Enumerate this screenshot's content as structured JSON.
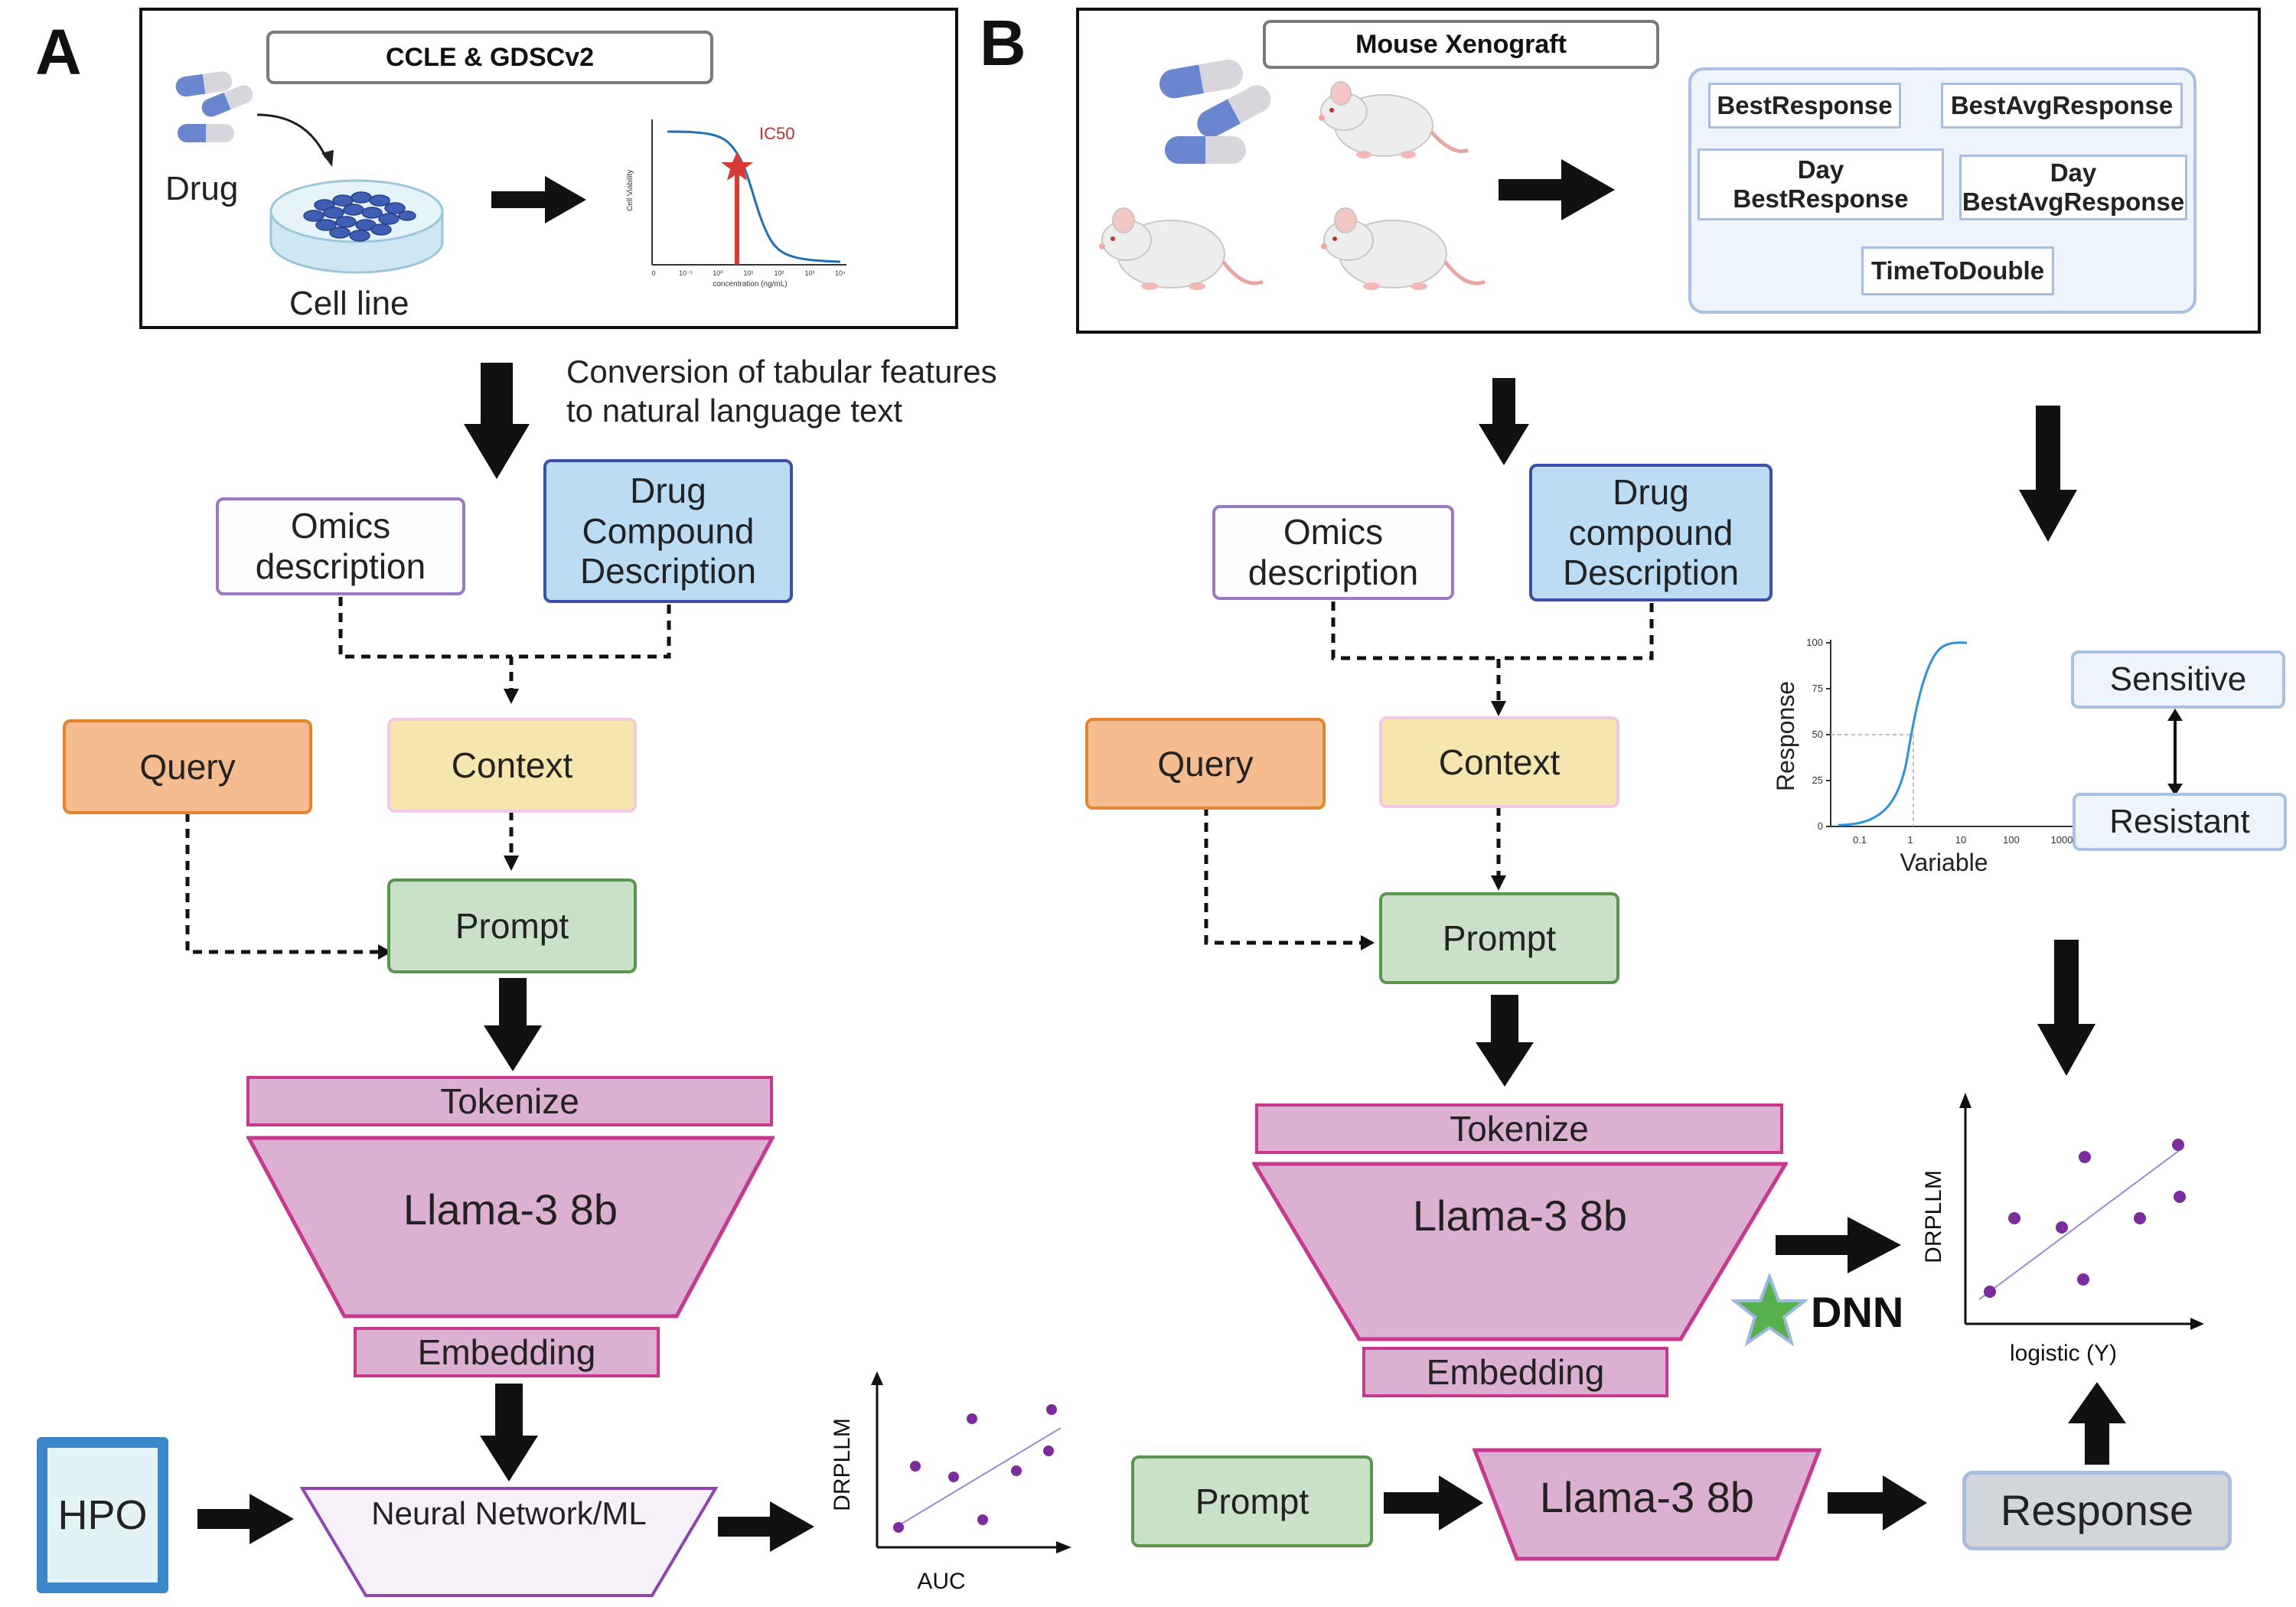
{
  "panel_a": {
    "letter": "A",
    "dataset_title": "CCLE & GDSCv2",
    "drug_label": "Drug",
    "cell_line_label": "Cell line",
    "ic50_label": "IC50",
    "curve_ylabel": "Cell Viability",
    "curve_xlabel": "concentration (ng/mL)",
    "curve_ticks": [
      "0",
      "10⁻¹",
      "10⁰",
      "10¹",
      "10²",
      "10³",
      "10⁴"
    ],
    "conversion_text": [
      "Conversion of tabular features",
      "to natural language text"
    ],
    "omics": [
      "Omics",
      "description"
    ],
    "drug_desc": [
      "Drug",
      "Compound",
      "Description"
    ],
    "query": "Query",
    "context": "Context",
    "prompt": "Prompt",
    "tokenize": "Tokenize",
    "llama": "Llama-3 8b",
    "embedding": "Embedding",
    "hpo": "HPO",
    "nn": "Neural Network/ML",
    "scatter_ylabel": "DRPLLM",
    "scatter_xlabel": "AUC"
  },
  "panel_b": {
    "letter": "B",
    "dataset_title": "Mouse Xenograft",
    "metrics": {
      "best_response": "BestResponse",
      "best_avg_response": "BestAvgResponse",
      "day_best_response": [
        "Day",
        "BestResponse"
      ],
      "day_best_avg_response": [
        "Day",
        "BestAvgResponse"
      ],
      "time_to_double": "TimeToDouble"
    },
    "omics": [
      "Omics",
      "description"
    ],
    "drug_desc": [
      "Drug",
      "compound",
      "Description"
    ],
    "query": "Query",
    "context": "Context",
    "prompt": "Prompt",
    "tokenize": "Tokenize",
    "llama": "Llama-3 8b",
    "embedding": "Embedding",
    "dnn": "DNN",
    "prompt2": "Prompt",
    "llama2": "Llama-3 8b",
    "response": "Response",
    "sigmoid_ylabel": "Response",
    "sigmoid_xlabel": "Variable",
    "sigmoid_yticks": [
      "0",
      "25",
      "50",
      "75",
      "100"
    ],
    "sigmoid_xticks": [
      "0.1",
      "1",
      "10",
      "100",
      "1000"
    ],
    "sensitive": "Sensitive",
    "resistant": "Resistant",
    "scatter_ylabel": "DRPLLM",
    "scatter_xlabel": "logistic (Y)"
  },
  "colors": {
    "arrow": "#111111",
    "scatter_point": "#7b2d9e",
    "fit_line": "#9a8ad2",
    "ic50_marker": "#d83a33",
    "curve": "#1e6fb6",
    "sigmoid": "#2a92e0",
    "dnn_star": "#56b04b"
  },
  "icons": [
    "pill-icon",
    "petri-dish-icon",
    "mouse-icon",
    "star-icon"
  ]
}
